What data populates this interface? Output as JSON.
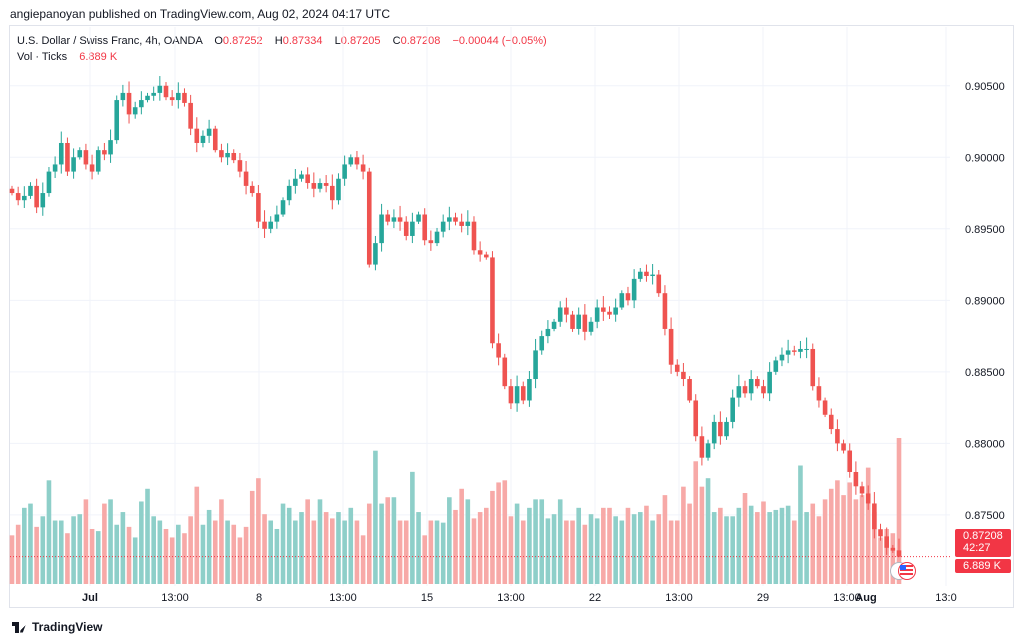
{
  "header": {
    "published": "angiepanoyan published on TradingView.com, Aug 02, 2024 04:17 UTC"
  },
  "legend": {
    "symbol": "U.S. Dollar / Swiss Franc, 4h, OANDA",
    "o_label": "O",
    "o": "0.87252",
    "h_label": "H",
    "h": "0.87334",
    "l_label": "L",
    "l": "0.87205",
    "c_label": "C",
    "c": "0.87208",
    "change": "−0.00044 (−0.05%)",
    "vol_label": "Vol · Ticks",
    "vol": "6.889 K"
  },
  "badges": {
    "price": "0.87208",
    "countdown": "42:27",
    "volume": "6.889 K"
  },
  "footer": {
    "brand": "TradingView"
  },
  "colors": {
    "up": "#26a69a",
    "down": "#ef5350",
    "vol_up": "#8ecfc9",
    "vol_down": "#f7a9a7",
    "last": "#f23645"
  },
  "icons": {
    "flag": "us-flag-icon"
  },
  "chart_data": {
    "type": "candlestick",
    "y_axis_ticks": [
      "0.90500",
      "0.90000",
      "0.89500",
      "0.89000",
      "0.88500",
      "0.88000",
      "0.87500"
    ],
    "x_axis_ticks": [
      "Jul",
      "13:00",
      "8",
      "13:00",
      "15",
      "13:00",
      "22",
      "13:00",
      "29",
      "13:00",
      "Aug",
      "13:0"
    ],
    "ylim": [
      0.8701,
      0.9075
    ],
    "last_price": 0.87208,
    "closes": [
      0.8975,
      0.897,
      0.8973,
      0.898,
      0.8965,
      0.8975,
      0.899,
      0.8995,
      0.901,
      0.899,
      0.9,
      0.9005,
      0.8995,
      0.899,
      0.9005,
      0.9002,
      0.9012,
      0.904,
      0.9045,
      0.903,
      0.9035,
      0.904,
      0.9043,
      0.9045,
      0.905,
      0.9042,
      0.904,
      0.9045,
      0.9038,
      0.902,
      0.901,
      0.9015,
      0.902,
      0.9005,
      0.9,
      0.9003,
      0.8998,
      0.899,
      0.898,
      0.8975,
      0.8955,
      0.895,
      0.8955,
      0.896,
      0.897,
      0.898,
      0.8985,
      0.8988,
      0.8982,
      0.8978,
      0.8982,
      0.898,
      0.897,
      0.8985,
      0.8995,
      0.9,
      0.8995,
      0.899,
      0.8925,
      0.894,
      0.896,
      0.8955,
      0.8958,
      0.8955,
      0.8945,
      0.8955,
      0.896,
      0.8942,
      0.894,
      0.8948,
      0.8955,
      0.8958,
      0.8955,
      0.8952,
      0.8955,
      0.8935,
      0.8932,
      0.893,
      0.887,
      0.886,
      0.884,
      0.8828,
      0.884,
      0.883,
      0.8845,
      0.8865,
      0.8875,
      0.888,
      0.8885,
      0.8895,
      0.889,
      0.888,
      0.889,
      0.8878,
      0.8885,
      0.8895,
      0.8892,
      0.889,
      0.8895,
      0.8905,
      0.89,
      0.8915,
      0.892,
      0.8917,
      0.8918,
      0.8905,
      0.888,
      0.8855,
      0.885,
      0.8845,
      0.883,
      0.8805,
      0.879,
      0.88,
      0.8815,
      0.8805,
      0.8815,
      0.8832,
      0.884,
      0.8835,
      0.8845,
      0.884,
      0.8835,
      0.885,
      0.8858,
      0.8862,
      0.8865,
      0.8864,
      0.8866,
      0.8866,
      0.884,
      0.883,
      0.882,
      0.881,
      0.88,
      0.8795,
      0.878,
      0.877,
      0.8765,
      0.8758,
      0.874,
      0.8735,
      0.8727,
      0.8725,
      0.87208
    ],
    "volumes_k": [
      2.3,
      2.8,
      3.6,
      3.8,
      2.7,
      3.2,
      4.9,
      3.0,
      3.0,
      2.4,
      3.2,
      3.3,
      4.0,
      2.6,
      2.5,
      3.8,
      4.0,
      2.8,
      3.4,
      2.7,
      2.2,
      3.9,
      4.5,
      3.2,
      3.0,
      2.6,
      2.2,
      2.8,
      2.4,
      3.2,
      4.6,
      2.8,
      3.5,
      3.0,
      4.0,
      3.0,
      2.8,
      2.2,
      2.7,
      4.4,
      5.0,
      3.3,
      3.0,
      2.6,
      3.8,
      3.6,
      3.0,
      3.4,
      4.0,
      3.0,
      4.0,
      3.4,
      3.1,
      3.4,
      3.0,
      3.6,
      3.0,
      2.3,
      3.8,
      6.3,
      3.8,
      4.1,
      4.1,
      3.0,
      3.0,
      5.3,
      3.4,
      2.3,
      3.0,
      3.0,
      2.9,
      4.1,
      3.5,
      4.5,
      4.0,
      3.1,
      3.4,
      3.6,
      4.4,
      4.8,
      4.9,
      3.2,
      3.8,
      3.0,
      3.6,
      4.0,
      4.0,
      3.1,
      3.3,
      4.0,
      3.0,
      3.0,
      3.6,
      2.8,
      3.3,
      3.1,
      3.6,
      3.6,
      3.2,
      3.0,
      3.6,
      3.3,
      3.4,
      3.7,
      3.0,
      3.3,
      4.2,
      3.0,
      3.0,
      4.6,
      3.8,
      5.8,
      4.6,
      5.0,
      3.4,
      3.6,
      3.2,
      3.2,
      3.6,
      4.3,
      3.7,
      3.4,
      3.9,
      3.4,
      3.5,
      3.6,
      3.7,
      3.0,
      5.6,
      3.4,
      3.8,
      3.2,
      4.0,
      4.5,
      4.9,
      4.2,
      4.8,
      4.0,
      4.2,
      5.5,
      3.4,
      2.2,
      2.6,
      2.4,
      6.9
    ]
  }
}
